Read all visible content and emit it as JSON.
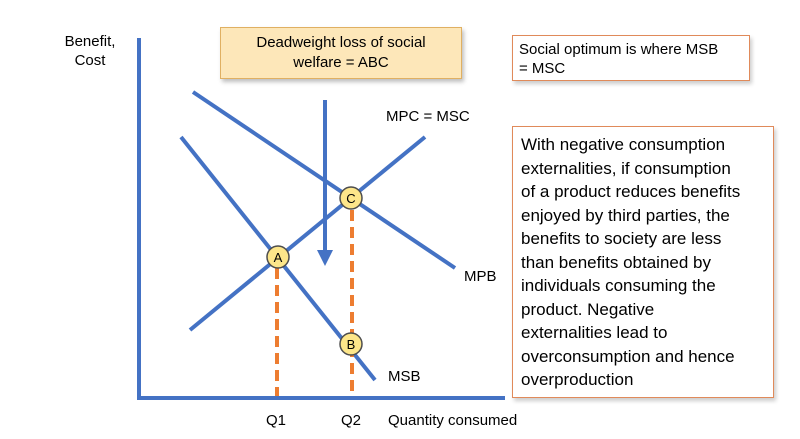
{
  "axes": {
    "y_label_line1": "Benefit,",
    "y_label_line2": "Cost",
    "x_label": "Quantity consumed",
    "q1": "Q1",
    "q2": "Q2"
  },
  "curves": {
    "supply": "MPC = MSC",
    "private_benefit": "MPB",
    "social_benefit": "MSB"
  },
  "points": {
    "a": "A",
    "b": "B",
    "c": "C"
  },
  "deadweight_box": {
    "line1": "Deadweight loss of social",
    "line2": "welfare = ABC"
  },
  "optimum_box": {
    "line1": "Social optimum is where MSB",
    "line2": "= MSC"
  },
  "explanation_lines": [
    "With negative consumption",
    "externalities, if consumption",
    "of a product reduces benefits",
    "enjoyed by third parties, the",
    "benefits to society are less",
    "than benefits obtained by",
    "individuals consuming the",
    "product. Negative",
    "externalities lead to",
    "overconsumption and hence",
    "overproduction"
  ],
  "colors": {
    "curve": "#4472c4",
    "dashed": "#ed7d31",
    "point_fill": "#fde68a",
    "deadweight_fill": "#fde7b9"
  }
}
